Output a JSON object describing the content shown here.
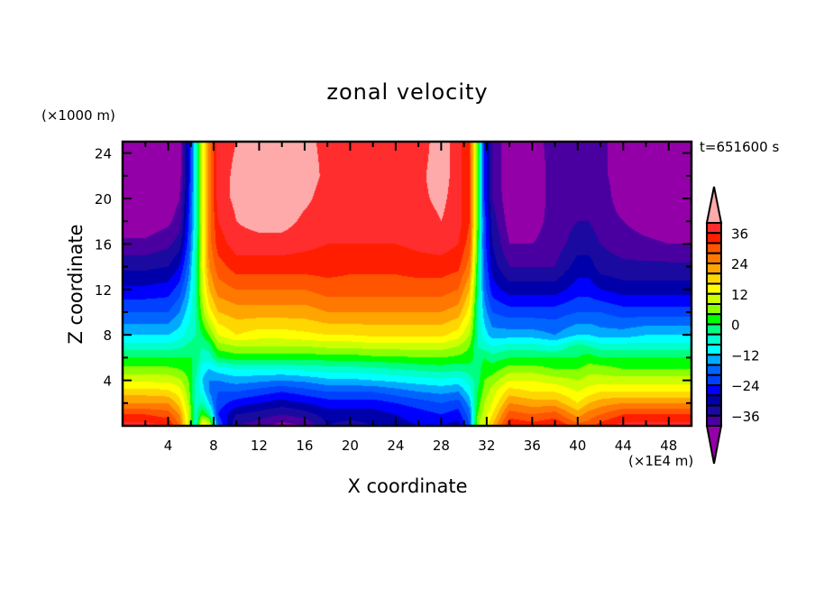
{
  "chart_data": {
    "type": "heatmap",
    "subtype": "filled-contour",
    "title": "zonal velocity",
    "xlabel": "X coordinate",
    "ylabel": "Z coordinate",
    "x_unit_label": "(×1E4 m)",
    "y_unit_label": "(×1000 m)",
    "annotation": "t=651600 s",
    "xlim": [
      0,
      50
    ],
    "ylim": [
      0,
      25
    ],
    "x_ticks": [
      4,
      8,
      12,
      16,
      20,
      24,
      28,
      32,
      36,
      40,
      44,
      48
    ],
    "x_minor_step": 2,
    "y_ticks": [
      4,
      8,
      12,
      16,
      20,
      24
    ],
    "y_minor_step": 2,
    "levels": {
      "min": -40,
      "max": 40,
      "step": 4
    },
    "colorbar": {
      "tick_labels": [
        "36",
        "24",
        "12",
        "0",
        "−12",
        "−24",
        "−36"
      ],
      "tick_values": [
        36,
        24,
        12,
        0,
        -12,
        -24,
        -36
      ],
      "colors_high_to_low": [
        "#ff2d2d",
        "#ff1e00",
        "#ff5500",
        "#ff7800",
        "#ffa500",
        "#ffd700",
        "#ffff00",
        "#ccff00",
        "#8cff00",
        "#00ff00",
        "#00ff80",
        "#00ffcc",
        "#00ffff",
        "#00aaff",
        "#0064ff",
        "#0040ff",
        "#0000ff",
        "#0000aa",
        "#1a0aa0",
        "#4a00a0"
      ],
      "over_color": "#ffaaaa",
      "under_color": "#9400a8"
    },
    "grid": {
      "x": [
        0,
        2,
        4,
        5,
        5.8,
        6.4,
        7,
        7.6,
        8.4,
        10,
        12,
        14,
        16,
        18,
        20,
        22,
        24,
        26,
        28,
        29.5,
        30.5,
        31.2,
        31.8,
        32.5,
        34,
        36,
        38,
        40,
        41,
        42,
        44,
        46,
        48,
        50
      ],
      "z": [
        0,
        1,
        2,
        3,
        4,
        5,
        6,
        7,
        8,
        10,
        12,
        14,
        16,
        18,
        20,
        22,
        25
      ],
      "u_columns": [
        [
          38,
          32,
          24,
          18,
          11,
          5,
          0,
          -6,
          -12,
          -20,
          -27,
          -33,
          -39,
          -43,
          -44,
          -44,
          -44
        ],
        [
          38,
          32,
          24,
          18,
          11,
          5,
          0,
          -6,
          -12,
          -20,
          -27,
          -33,
          -39,
          -43,
          -44,
          -44,
          -44
        ],
        [
          36,
          30,
          24,
          17,
          11,
          5,
          0,
          -6,
          -12,
          -20,
          -26,
          -32,
          -37,
          -41,
          -43,
          -44,
          -44
        ],
        [
          28,
          24,
          18,
          14,
          9,
          4,
          0,
          -5,
          -10,
          -16,
          -22,
          -28,
          -34,
          -38,
          -40,
          -42,
          -42
        ],
        [
          10,
          10,
          8,
          6,
          4,
          2,
          0,
          -3,
          -6,
          -10,
          -14,
          -18,
          -22,
          -24,
          -26,
          -28,
          -28
        ],
        [
          -8,
          -6,
          -6,
          -6,
          -4,
          -2,
          0,
          -2,
          -4,
          -4,
          -4,
          -4,
          -6,
          -8,
          -8,
          -8,
          -8
        ],
        [
          16,
          4,
          -4,
          -10,
          -12,
          -10,
          -6,
          -4,
          0,
          6,
          10,
          12,
          12,
          12,
          12,
          12,
          12
        ],
        [
          14,
          -2,
          -12,
          -16,
          -16,
          -12,
          -6,
          -2,
          4,
          14,
          20,
          24,
          26,
          26,
          26,
          26,
          26
        ],
        [
          -20,
          -24,
          -22,
          -20,
          -16,
          -10,
          0,
          6,
          12,
          20,
          26,
          30,
          34,
          36,
          38,
          38,
          38
        ],
        [
          -36,
          -32,
          -26,
          -20,
          -14,
          -8,
          2,
          8,
          16,
          22,
          28,
          34,
          38,
          40,
          41,
          41,
          40
        ],
        [
          -38,
          -34,
          -28,
          -22,
          -15,
          -8,
          2,
          8,
          14,
          22,
          28,
          34,
          38,
          42,
          42,
          42,
          41
        ],
        [
          -42,
          -36,
          -30,
          -24,
          -16,
          -8,
          2,
          8,
          14,
          22,
          28,
          34,
          38,
          42,
          43,
          43,
          42
        ],
        [
          -40,
          -34,
          -28,
          -22,
          -15,
          -7,
          2,
          8,
          15,
          22,
          28,
          34,
          37,
          39,
          41,
          42,
          41
        ],
        [
          -32,
          -30,
          -26,
          -20,
          -13,
          -6,
          2,
          9,
          16,
          24,
          30,
          34,
          36,
          38,
          38,
          39,
          39
        ],
        [
          -34,
          -30,
          -26,
          -20,
          -13,
          -6,
          2,
          9,
          16,
          24,
          30,
          33,
          36,
          38,
          38,
          38,
          39
        ],
        [
          -32,
          -30,
          -26,
          -20,
          -12,
          -5,
          3,
          10,
          17,
          24,
          30,
          33,
          36,
          37,
          38,
          38,
          38
        ],
        [
          -30,
          -28,
          -24,
          -18,
          -11,
          -4,
          3,
          10,
          17,
          24,
          30,
          33,
          36,
          38,
          38,
          38,
          38
        ],
        [
          -28,
          -26,
          -22,
          -16,
          -10,
          -3,
          4,
          10,
          17,
          24,
          30,
          34,
          37,
          38,
          39,
          39,
          38
        ],
        [
          -28,
          -24,
          -20,
          -15,
          -9,
          -2,
          4,
          10,
          17,
          24,
          30,
          34,
          38,
          40,
          41,
          42,
          42
        ],
        [
          -30,
          -26,
          -22,
          -16,
          -10,
          -3,
          3,
          8,
          14,
          22,
          28,
          33,
          36,
          38,
          38,
          38,
          38
        ],
        [
          -20,
          -18,
          -14,
          -10,
          -6,
          -2,
          2,
          4,
          8,
          14,
          20,
          26,
          30,
          32,
          32,
          32,
          32
        ],
        [
          8,
          4,
          2,
          0,
          -2,
          -2,
          -2,
          -4,
          -4,
          -4,
          -2,
          0,
          2,
          4,
          4,
          4,
          4
        ],
        [
          12,
          10,
          8,
          6,
          4,
          2,
          0,
          -6,
          -10,
          -14,
          -18,
          -20,
          -22,
          -22,
          -24,
          -24,
          -24
        ],
        [
          20,
          16,
          12,
          10,
          6,
          2,
          -2,
          -8,
          -14,
          -20,
          -26,
          -30,
          -32,
          -34,
          -36,
          -36,
          -36
        ],
        [
          36,
          30,
          24,
          18,
          12,
          6,
          0,
          -6,
          -14,
          -22,
          -30,
          -36,
          -40,
          -42,
          -43,
          -44,
          -44
        ],
        [
          34,
          28,
          22,
          16,
          12,
          6,
          0,
          -6,
          -14,
          -22,
          -30,
          -36,
          -40,
          -42,
          -43,
          -43,
          -42
        ],
        [
          36,
          30,
          22,
          16,
          10,
          4,
          0,
          -8,
          -16,
          -22,
          -30,
          -36,
          -38,
          -38,
          -38,
          -38,
          -38
        ],
        [
          30,
          22,
          16,
          12,
          8,
          4,
          0,
          -2,
          -12,
          -20,
          -26,
          -30,
          -34,
          -36,
          -37,
          -38,
          -38
        ],
        [
          30,
          26,
          20,
          14,
          10,
          6,
          2,
          -4,
          -12,
          -20,
          -26,
          -30,
          -34,
          -36,
          -37,
          -38,
          -38
        ],
        [
          34,
          28,
          22,
          16,
          10,
          6,
          0,
          -6,
          -14,
          -20,
          -28,
          -34,
          -36,
          -38,
          -38,
          -39,
          -39
        ],
        [
          38,
          32,
          24,
          16,
          10,
          4,
          0,
          -6,
          -14,
          -22,
          -30,
          -35,
          -38,
          -40,
          -42,
          -42,
          -42
        ],
        [
          38,
          32,
          24,
          16,
          10,
          4,
          0,
          -6,
          -12,
          -22,
          -30,
          -35,
          -39,
          -42,
          -43,
          -44,
          -44
        ],
        [
          38,
          32,
          24,
          16,
          10,
          4,
          0,
          -6,
          -12,
          -22,
          -30,
          -35,
          -40,
          -43,
          -44,
          -44,
          -44
        ],
        [
          38,
          32,
          24,
          16,
          10,
          4,
          0,
          -6,
          -12,
          -22,
          -30,
          -35,
          -40,
          -43,
          -44,
          -44,
          -44
        ]
      ]
    }
  }
}
